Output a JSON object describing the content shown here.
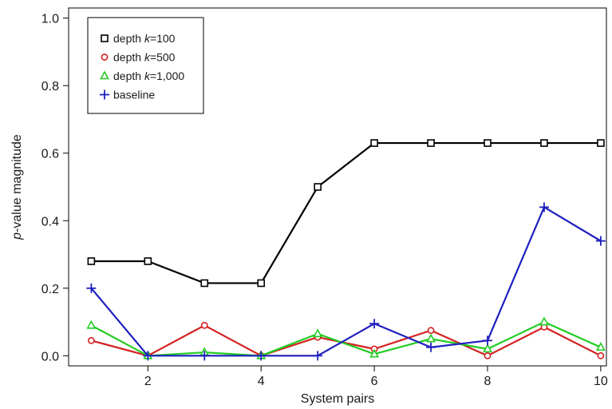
{
  "chart_data": {
    "type": "line",
    "xlabel": "System pairs",
    "ylabel_prefix": "p",
    "ylabel_suffix": "-value magnitude",
    "xlim": [
      0.6,
      10.1
    ],
    "ylim": [
      -0.03,
      1.03
    ],
    "x_ticks": [
      2,
      4,
      6,
      8,
      10
    ],
    "y_ticks": [
      0.0,
      0.2,
      0.4,
      0.6,
      0.8,
      1.0
    ],
    "x_tick_labels": [
      "2",
      "4",
      "6",
      "8",
      "10"
    ],
    "y_tick_labels": [
      "0.0",
      "0.2",
      "0.4",
      "0.6",
      "0.8",
      "1.0"
    ],
    "grid": false,
    "legend_position": "top-left",
    "x": [
      1,
      2,
      3,
      4,
      5,
      6,
      7,
      8,
      9,
      10
    ],
    "series": [
      {
        "legend_prefix": "depth ",
        "legend_var": "k",
        "legend_suffix": "=100",
        "marker": "square",
        "color": "#000000",
        "values": [
          0.28,
          0.28,
          0.215,
          0.215,
          0.5,
          0.63,
          0.63,
          0.63,
          0.63,
          0.63
        ]
      },
      {
        "legend_prefix": "depth ",
        "legend_var": "k",
        "legend_suffix": "=500",
        "marker": "circle",
        "color": "#d42020",
        "values": [
          0.045,
          0.0,
          0.09,
          0.0,
          0.055,
          0.02,
          0.075,
          0.0,
          0.085,
          0.0
        ]
      },
      {
        "legend_prefix": "depth ",
        "legend_var": "k",
        "legend_suffix": "=1,000",
        "marker": "triangle",
        "color": "#22cc22",
        "values": [
          0.09,
          0.0,
          0.01,
          0.0,
          0.065,
          0.005,
          0.05,
          0.02,
          0.1,
          0.025
        ]
      },
      {
        "legend_prefix": "",
        "legend_var": "",
        "legend_suffix": "baseline",
        "marker": "plus",
        "color": "#1f1fbf",
        "values": [
          0.2,
          0.0,
          0.0,
          0.0,
          0.0,
          0.095,
          0.025,
          0.045,
          0.44,
          0.34
        ]
      }
    ]
  }
}
